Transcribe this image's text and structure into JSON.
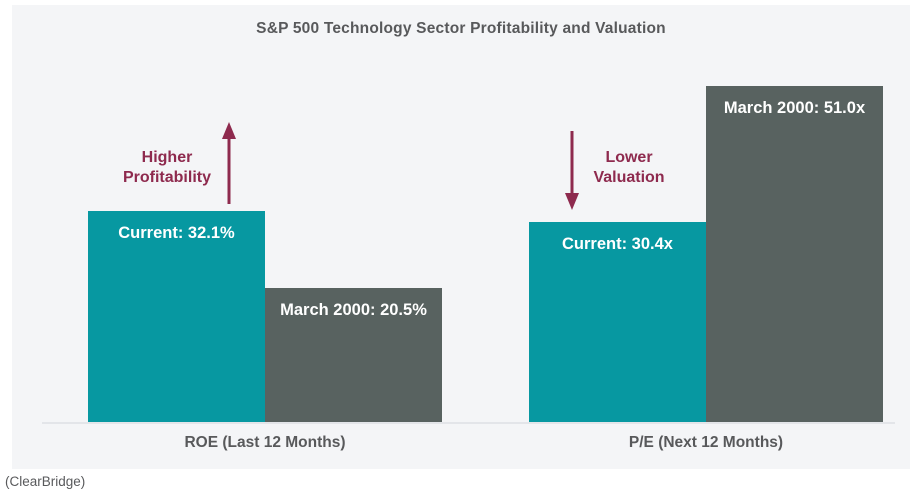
{
  "title": "S&P 500 Technology Sector Profitability and Valuation",
  "attribution": "(ClearBridge)",
  "colors": {
    "current_bar": "#0798A1",
    "march_2000_bar": "#586260",
    "annotation_accent": "#8E2A4E",
    "heading_text": "#58595B",
    "bar_label_text": "#FFFFFF",
    "card_background": "#F4F5F7",
    "axis_line": "#E3E5E9"
  },
  "chart_data": [
    {
      "type": "bar",
      "title": "ROE (Last 12 Months)",
      "unit": "%",
      "categories": [
        "Current",
        "March 2000"
      ],
      "values": [
        32.1,
        20.5
      ],
      "annotation": {
        "text": "Higher\nProfitability",
        "direction": "up"
      },
      "bars": [
        {
          "name": "Current",
          "label": "Current: 32.1%",
          "value": 32.1,
          "color": "#0798A1"
        },
        {
          "name": "March 2000",
          "label": "March 2000: 20.5%",
          "value": 20.5,
          "color": "#586260"
        }
      ]
    },
    {
      "type": "bar",
      "title": "P/E (Next 12 Months)",
      "unit": "x",
      "categories": [
        "Current",
        "March 2000"
      ],
      "values": [
        30.4,
        51.0
      ],
      "annotation": {
        "text": "Lower\nValuation",
        "direction": "down"
      },
      "bars": [
        {
          "name": "Current",
          "label": "Current: 30.4x",
          "value": 30.4,
          "color": "#0798A1"
        },
        {
          "name": "March 2000",
          "label": "March 2000: 51.0x",
          "value": 51.0,
          "color": "#586260"
        }
      ]
    }
  ]
}
